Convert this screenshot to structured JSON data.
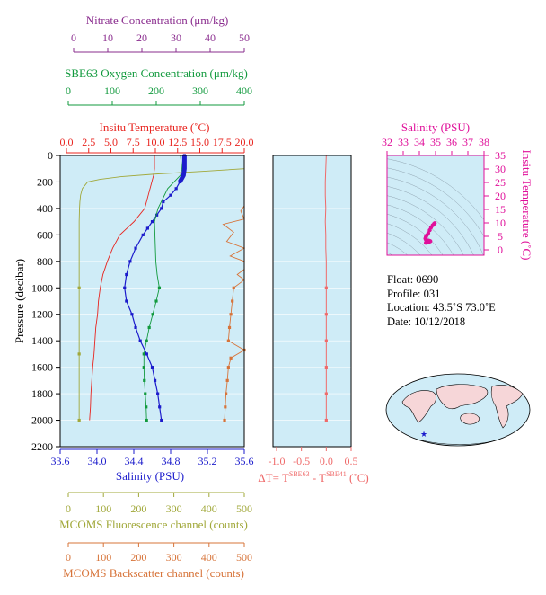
{
  "colors": {
    "temperature": "#e8241f",
    "salinity": "#1c1ccc",
    "oxygen": "#129a3e",
    "nitrate": "#8a2c8e",
    "fluorescence": "#a1a83a",
    "backscatter": "#d7743a",
    "delta_t": "#ef6a6a",
    "ts_diagram": "#e0109a",
    "plot_background": "#cfecf7"
  },
  "axes": {
    "nitrate": {
      "label": "Nitrate Concentration (μm/kg)",
      "ticks": [
        "0",
        "10",
        "20",
        "30",
        "40",
        "50"
      ]
    },
    "oxygen": {
      "label": "SBE63 Oxygen Concentration (μm/kg)",
      "ticks": [
        "0",
        "100",
        "200",
        "300",
        "400"
      ]
    },
    "temperature": {
      "label": "Insitu Temperature (˚C)",
      "ticks": [
        "0.0",
        "2.5",
        "5.0",
        "7.5",
        "10.0",
        "12.5",
        "15.0",
        "17.5",
        "20.0"
      ]
    },
    "pressure": {
      "label": "Pressure (decibar)",
      "ticks": [
        "0",
        "200",
        "400",
        "600",
        "800",
        "1000",
        "1200",
        "1400",
        "1600",
        "1800",
        "2000",
        "2200"
      ]
    },
    "salinity": {
      "label": "Salinity (PSU)",
      "ticks": [
        "33.6",
        "34.0",
        "34.4",
        "34.8",
        "35.2",
        "35.6"
      ]
    },
    "delta_t": {
      "label_prefix": "ΔT= T",
      "sup1": "SBE63",
      "label_mid": " - T",
      "sup2": "SBE41",
      "label_suffix": " (˚C)",
      "ticks": [
        "-1.0",
        "-0.5",
        "0.0",
        "0.5"
      ]
    },
    "fluorescence": {
      "label": "MCOMS Fluorescence channel (counts)",
      "ticks": [
        "0",
        "100",
        "200",
        "300",
        "400",
        "500"
      ]
    },
    "backscatter": {
      "label": "MCOMS Backscatter channel (counts)",
      "ticks": [
        "0",
        "100",
        "200",
        "300",
        "400",
        "500"
      ]
    },
    "ts_salinity": {
      "label": "Salinity (PSU)",
      "ticks": [
        "32",
        "33",
        "34",
        "35",
        "36",
        "37",
        "38"
      ]
    },
    "ts_temperature": {
      "label": "Insitu Temperature (˚C)",
      "ticks": [
        "0",
        "5",
        "10",
        "15",
        "20",
        "25",
        "30",
        "35"
      ]
    }
  },
  "info": {
    "float": "Float:  0690",
    "profile": "Profile:  031",
    "location": "Location:  43.5˚S  73.0˚E",
    "date": "Date:  10/12/2018"
  },
  "chart_data": {
    "type": "line",
    "y_axis": {
      "quantity": "pressure",
      "unit": "decibar",
      "range": [
        0,
        2200
      ],
      "inverted": true
    },
    "series": [
      {
        "name": "Insitu Temperature",
        "axis": "temperature",
        "range": [
          0,
          20
        ],
        "y": [
          0,
          100,
          150,
          200,
          300,
          400,
          500,
          600,
          700,
          800,
          900,
          1000,
          1100,
          1200,
          1300,
          1400,
          1500,
          1600,
          1700,
          1800,
          1900,
          2000
        ],
        "x": [
          9.9,
          9.9,
          9.8,
          9.6,
          9.2,
          8.8,
          7.6,
          6.0,
          5.2,
          4.6,
          4.1,
          3.8,
          3.6,
          3.5,
          3.3,
          3.2,
          3.1,
          2.95,
          2.85,
          2.75,
          2.7,
          2.6
        ]
      },
      {
        "name": "Salinity",
        "axis": "salinity",
        "range": [
          33.6,
          35.6
        ],
        "y": [
          0,
          100,
          150,
          200,
          250,
          300,
          350,
          400,
          450,
          500,
          550,
          600,
          700,
          800,
          900,
          1000,
          1100,
          1200,
          1300,
          1400,
          1500,
          1600,
          1700,
          1800,
          1900,
          2000
        ],
        "x": [
          34.95,
          34.95,
          34.94,
          34.9,
          34.86,
          34.8,
          34.72,
          34.7,
          34.65,
          34.6,
          34.55,
          34.5,
          34.42,
          34.36,
          34.32,
          34.3,
          34.32,
          34.38,
          34.42,
          34.47,
          34.54,
          34.6,
          34.63,
          34.66,
          34.68,
          34.7
        ]
      },
      {
        "name": "SBE63 Oxygen Concentration",
        "axis": "oxygen",
        "range": [
          0,
          400
        ],
        "y": [
          0,
          100,
          150,
          250,
          400,
          500,
          600,
          700,
          800,
          900,
          1000,
          1100,
          1200,
          1300,
          1400,
          1500,
          1600,
          1700,
          1800,
          1900,
          2000
        ],
        "x": [
          255,
          258,
          255,
          226,
          204,
          196,
          197,
          198,
          199,
          202,
          207,
          200,
          192,
          184,
          178,
          172,
          172,
          173,
          175,
          177,
          178
        ]
      },
      {
        "name": "MCOMS Fluorescence channel",
        "axis": "fluorescence",
        "range": [
          0,
          500
        ],
        "y": [
          0,
          100,
          120,
          140,
          160,
          180,
          200,
          250,
          300,
          350,
          400,
          500,
          1000,
          1500,
          2000
        ],
        "x": [
          512,
          500,
          380,
          250,
          150,
          90,
          55,
          40,
          35,
          33,
          32,
          31,
          31,
          31,
          31
        ]
      },
      {
        "name": "MCOMS Backscatter channel",
        "axis": "backscatter",
        "range": [
          0,
          500
        ],
        "y": [
          0,
          300,
          380,
          420,
          480,
          520,
          580,
          650,
          700,
          760,
          800,
          860,
          900,
          940,
          1000,
          1100,
          1200,
          1300,
          1400,
          1470,
          1530,
          1600,
          1700,
          1800,
          1900,
          2000
        ],
        "x": [
          560,
          555,
          540,
          490,
          500,
          440,
          470,
          450,
          520,
          460,
          500,
          540,
          480,
          520,
          470,
          466,
          462,
          458,
          455,
          500,
          462,
          455,
          452,
          448,
          446,
          444
        ]
      },
      {
        "name": "Delta T (SBE63 - SBE41)",
        "axis": "delta_t",
        "range": [
          -1.0,
          0.5
        ],
        "y": [
          0,
          100,
          200,
          300,
          400,
          500,
          600,
          700,
          800,
          900,
          1000,
          1200,
          1400,
          1600,
          1800,
          2000
        ],
        "x": [
          0.0,
          -0.01,
          -0.02,
          -0.02,
          -0.01,
          -0.02,
          -0.01,
          -0.01,
          0.0,
          0.0,
          0.0,
          0.0,
          0.0,
          0.0,
          0.0,
          0.0
        ]
      }
    ],
    "ts_diagram": {
      "type": "scatter",
      "x_axis": "salinity",
      "xlim": [
        32,
        38
      ],
      "y_axis": "temperature",
      "ylim": [
        -2,
        35
      ],
      "points": [
        {
          "s": 34.4,
          "t": 2.6
        },
        {
          "s": 34.47,
          "t": 2.7
        },
        {
          "s": 34.54,
          "t": 2.8
        },
        {
          "s": 34.62,
          "t": 3.0
        },
        {
          "s": 34.68,
          "t": 3.2
        },
        {
          "s": 34.63,
          "t": 3.3
        },
        {
          "s": 34.55,
          "t": 3.4
        },
        {
          "s": 34.46,
          "t": 3.6
        },
        {
          "s": 34.4,
          "t": 3.8
        },
        {
          "s": 34.37,
          "t": 4.2
        },
        {
          "s": 34.4,
          "t": 4.8
        },
        {
          "s": 34.46,
          "t": 5.4
        },
        {
          "s": 34.55,
          "t": 6.2
        },
        {
          "s": 34.64,
          "t": 7.3
        },
        {
          "s": 34.72,
          "t": 8.3
        },
        {
          "s": 34.82,
          "t": 9.1
        },
        {
          "s": 34.9,
          "t": 9.6
        },
        {
          "s": 34.95,
          "t": 9.9
        }
      ]
    }
  }
}
